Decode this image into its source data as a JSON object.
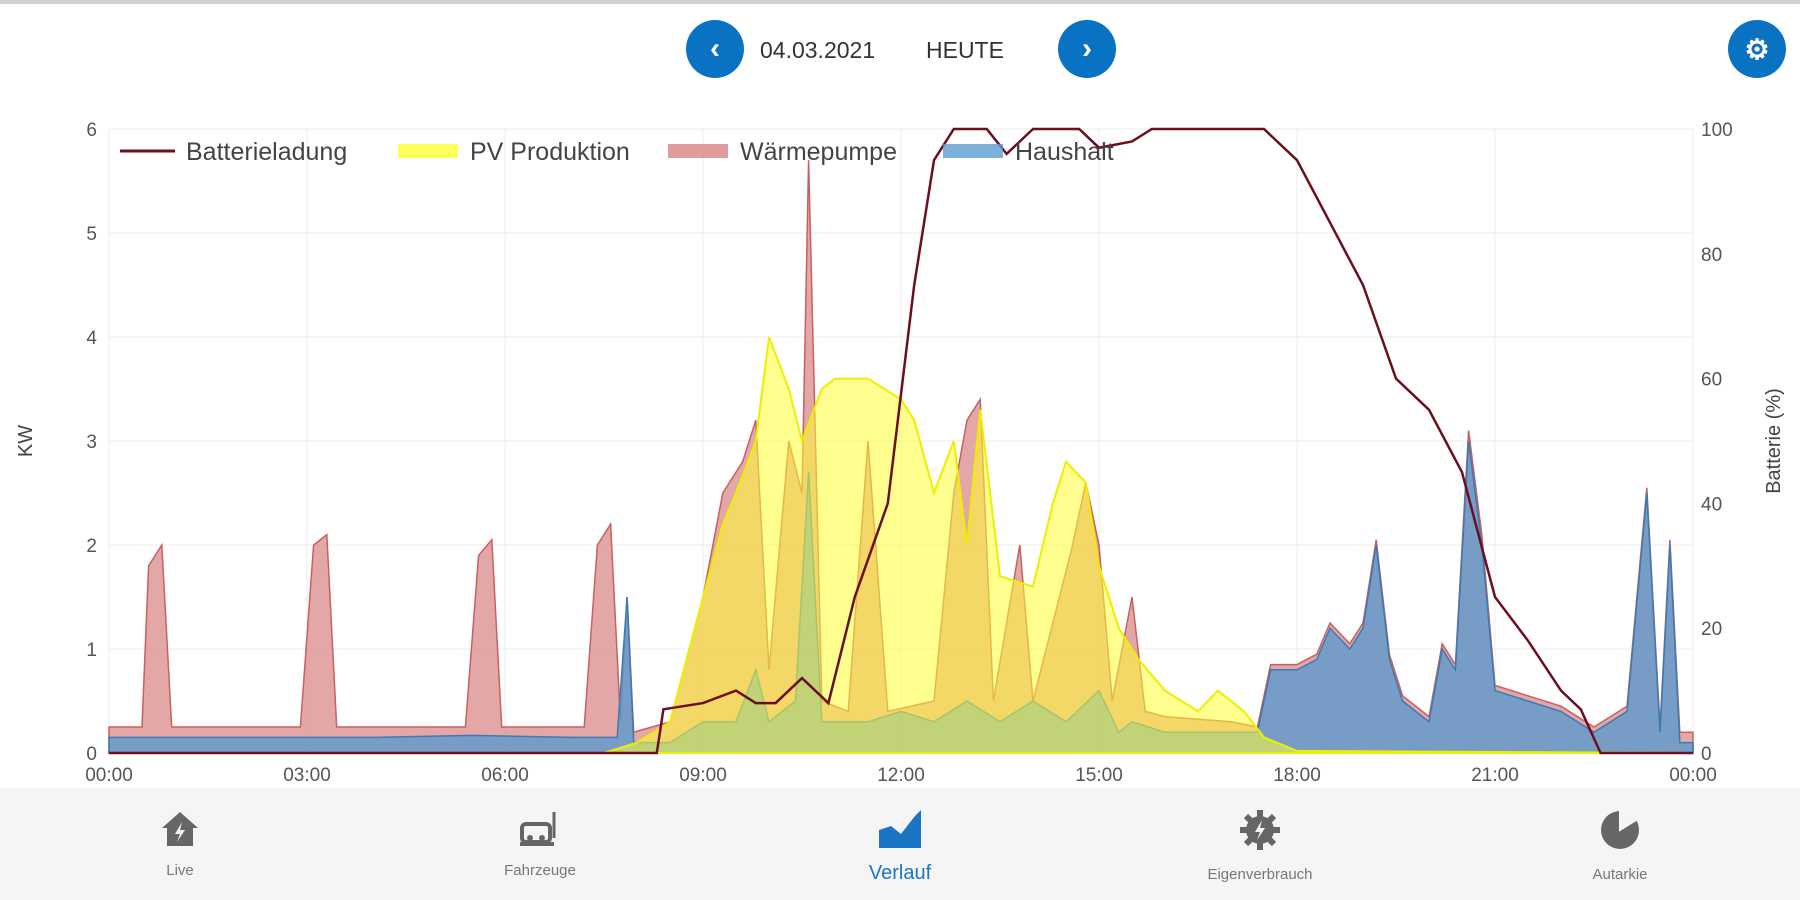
{
  "header": {
    "date": "04.03.2021",
    "today_label": "HEUTE",
    "prev_icon": "chevron-left-icon",
    "next_icon": "chevron-right-icon",
    "settings_icon": "gear-icon"
  },
  "colors": {
    "accent": "#0a72c2",
    "battery": "#6b0f1f",
    "pv": "#ffff33",
    "heatpump": "#d98282",
    "household": "#5b9bcf"
  },
  "nav": [
    {
      "label": "Live",
      "icon": "house-bolt-icon"
    },
    {
      "label": "Fahrzeuge",
      "icon": "ev-charger-icon"
    },
    {
      "label": "Verlauf",
      "icon": "area-chart-icon",
      "active": true
    },
    {
      "label": "Eigenverbrauch",
      "icon": "gear-bolt-icon"
    },
    {
      "label": "Autarkie",
      "icon": "pie-chart-icon"
    }
  ],
  "chart_data": {
    "type": "area",
    "ylabel": "KW",
    "y2label": "Batterie (%)",
    "ylim": [
      0,
      6
    ],
    "y2lim": [
      0,
      100
    ],
    "xlim": [
      "00:00",
      "24:00"
    ],
    "yticks": [
      "0",
      "1",
      "2",
      "3",
      "4",
      "5",
      "6"
    ],
    "y2ticks": [
      "0",
      "20",
      "40",
      "60",
      "80",
      "100"
    ],
    "xticks": [
      "00:00",
      "03:00",
      "06:00",
      "09:00",
      "12:00",
      "15:00",
      "18:00",
      "21:00",
      "00:00"
    ],
    "grid": true,
    "legend": "top-left",
    "series": [
      {
        "name": "Haushalt",
        "axis": "left",
        "style": "stacked-area",
        "points": [
          [
            0,
            0.15
          ],
          [
            2,
            0.15
          ],
          [
            4,
            0.15
          ],
          [
            5.5,
            0.17
          ],
          [
            7,
            0.15
          ],
          [
            7.7,
            0.15
          ],
          [
            7.85,
            1.5
          ],
          [
            7.95,
            0.1
          ],
          [
            8.5,
            0.1
          ],
          [
            9,
            0.3
          ],
          [
            9.5,
            0.3
          ],
          [
            9.8,
            0.8
          ],
          [
            10,
            0.3
          ],
          [
            10.4,
            0.5
          ],
          [
            10.6,
            2.7
          ],
          [
            10.8,
            0.3
          ],
          [
            11.5,
            0.3
          ],
          [
            12,
            0.4
          ],
          [
            12.5,
            0.3
          ],
          [
            13,
            0.5
          ],
          [
            13.5,
            0.3
          ],
          [
            14,
            0.5
          ],
          [
            14.5,
            0.3
          ],
          [
            15,
            0.6
          ],
          [
            15.3,
            0.2
          ],
          [
            15.5,
            0.3
          ],
          [
            16,
            0.2
          ],
          [
            17,
            0.2
          ],
          [
            17.4,
            0.2
          ],
          [
            17.6,
            0.8
          ],
          [
            18,
            0.8
          ],
          [
            18.3,
            0.9
          ],
          [
            18.5,
            1.2
          ],
          [
            18.8,
            1.0
          ],
          [
            19,
            1.2
          ],
          [
            19.2,
            2.0
          ],
          [
            19.4,
            0.9
          ],
          [
            19.6,
            0.5
          ],
          [
            20,
            0.3
          ],
          [
            20.2,
            1.0
          ],
          [
            20.4,
            0.8
          ],
          [
            20.6,
            3.0
          ],
          [
            20.8,
            2.0
          ],
          [
            21,
            0.6
          ],
          [
            21.5,
            0.5
          ],
          [
            22,
            0.4
          ],
          [
            22.5,
            0.2
          ],
          [
            23,
            0.4
          ],
          [
            23.3,
            2.5
          ],
          [
            23.5,
            0.2
          ],
          [
            23.65,
            2.0
          ],
          [
            23.8,
            0.1
          ],
          [
            24,
            0.1
          ]
        ]
      },
      {
        "name": "Wärmepumpe",
        "axis": "left",
        "style": "stacked-area-total",
        "points": [
          [
            0,
            0.25
          ],
          [
            0.5,
            0.25
          ],
          [
            0.6,
            1.8
          ],
          [
            0.8,
            2.0
          ],
          [
            0.95,
            0.25
          ],
          [
            2.9,
            0.25
          ],
          [
            3.1,
            2.0
          ],
          [
            3.3,
            2.1
          ],
          [
            3.45,
            0.25
          ],
          [
            5.4,
            0.25
          ],
          [
            5.6,
            1.9
          ],
          [
            5.8,
            2.05
          ],
          [
            5.95,
            0.25
          ],
          [
            7.2,
            0.25
          ],
          [
            7.4,
            2.0
          ],
          [
            7.6,
            2.2
          ],
          [
            7.75,
            0.3
          ],
          [
            7.85,
            1.5
          ],
          [
            7.95,
            0.2
          ],
          [
            8.5,
            0.3
          ],
          [
            9,
            1.5
          ],
          [
            9.3,
            2.5
          ],
          [
            9.6,
            2.8
          ],
          [
            9.8,
            3.2
          ],
          [
            10,
            0.8
          ],
          [
            10.3,
            3.0
          ],
          [
            10.5,
            2.5
          ],
          [
            10.6,
            5.7
          ],
          [
            10.8,
            0.5
          ],
          [
            11.2,
            0.4
          ],
          [
            11.5,
            3.0
          ],
          [
            11.8,
            0.4
          ],
          [
            12.5,
            0.5
          ],
          [
            12.8,
            2.5
          ],
          [
            13.0,
            3.2
          ],
          [
            13.2,
            3.4
          ],
          [
            13.4,
            0.5
          ],
          [
            13.8,
            2.0
          ],
          [
            14.0,
            0.5
          ],
          [
            14.6,
            2.0
          ],
          [
            14.8,
            2.6
          ],
          [
            15.0,
            2.0
          ],
          [
            15.2,
            0.5
          ],
          [
            15.5,
            1.5
          ],
          [
            15.7,
            0.4
          ],
          [
            16,
            0.35
          ],
          [
            17,
            0.3
          ],
          [
            17.4,
            0.25
          ],
          [
            17.6,
            0.85
          ],
          [
            18,
            0.85
          ],
          [
            18.3,
            0.95
          ],
          [
            18.5,
            1.25
          ],
          [
            18.8,
            1.05
          ],
          [
            19,
            1.25
          ],
          [
            19.2,
            2.05
          ],
          [
            19.4,
            0.95
          ],
          [
            19.6,
            0.55
          ],
          [
            20,
            0.35
          ],
          [
            20.2,
            1.05
          ],
          [
            20.4,
            0.85
          ],
          [
            20.6,
            3.1
          ],
          [
            20.8,
            2.1
          ],
          [
            21,
            0.65
          ],
          [
            21.5,
            0.55
          ],
          [
            22,
            0.45
          ],
          [
            22.5,
            0.25
          ],
          [
            23,
            0.45
          ],
          [
            23.3,
            2.55
          ],
          [
            23.5,
            0.25
          ],
          [
            23.65,
            2.05
          ],
          [
            23.8,
            0.2
          ],
          [
            24,
            0.2
          ]
        ]
      },
      {
        "name": "PV Produktion",
        "axis": "left",
        "style": "area",
        "points": [
          [
            0,
            0
          ],
          [
            7.5,
            0
          ],
          [
            8,
            0.1
          ],
          [
            8.5,
            0.3
          ],
          [
            9,
            1.5
          ],
          [
            9.3,
            2.2
          ],
          [
            9.5,
            2.5
          ],
          [
            9.8,
            3.0
          ],
          [
            10,
            4.0
          ],
          [
            10.3,
            3.5
          ],
          [
            10.5,
            3.0
          ],
          [
            10.8,
            3.5
          ],
          [
            11,
            3.6
          ],
          [
            11.5,
            3.6
          ],
          [
            12,
            3.4
          ],
          [
            12.2,
            3.2
          ],
          [
            12.5,
            2.5
          ],
          [
            12.8,
            3.0
          ],
          [
            13,
            2.0
          ],
          [
            13.2,
            3.3
          ],
          [
            13.5,
            1.7
          ],
          [
            14,
            1.6
          ],
          [
            14.3,
            2.4
          ],
          [
            14.5,
            2.8
          ],
          [
            14.8,
            2.6
          ],
          [
            15,
            1.8
          ],
          [
            15.3,
            1.2
          ],
          [
            15.6,
            0.9
          ],
          [
            16,
            0.6
          ],
          [
            16.5,
            0.4
          ],
          [
            16.8,
            0.6
          ],
          [
            17.2,
            0.4
          ],
          [
            17.5,
            0.15
          ],
          [
            18,
            0.02
          ],
          [
            24,
            0
          ]
        ]
      },
      {
        "name": "Batterieladung",
        "axis": "right",
        "style": "line",
        "points": [
          [
            0,
            0
          ],
          [
            8.3,
            0
          ],
          [
            8.4,
            7
          ],
          [
            9,
            8
          ],
          [
            9.5,
            10
          ],
          [
            9.8,
            8
          ],
          [
            10.1,
            8
          ],
          [
            10.5,
            12
          ],
          [
            10.9,
            8
          ],
          [
            11.3,
            25
          ],
          [
            11.8,
            40
          ],
          [
            12.2,
            75
          ],
          [
            12.5,
            95
          ],
          [
            12.8,
            100
          ],
          [
            13.3,
            100
          ],
          [
            13.6,
            96
          ],
          [
            14,
            100
          ],
          [
            14.7,
            100
          ],
          [
            15,
            97
          ],
          [
            15.5,
            98
          ],
          [
            15.8,
            100
          ],
          [
            17.5,
            100
          ],
          [
            18,
            95
          ],
          [
            18.5,
            85
          ],
          [
            19,
            75
          ],
          [
            19.5,
            60
          ],
          [
            20,
            55
          ],
          [
            20.5,
            45
          ],
          [
            21,
            25
          ],
          [
            21.5,
            18
          ],
          [
            22,
            10
          ],
          [
            22.3,
            7
          ],
          [
            22.6,
            0
          ],
          [
            24,
            0
          ]
        ]
      }
    ]
  }
}
